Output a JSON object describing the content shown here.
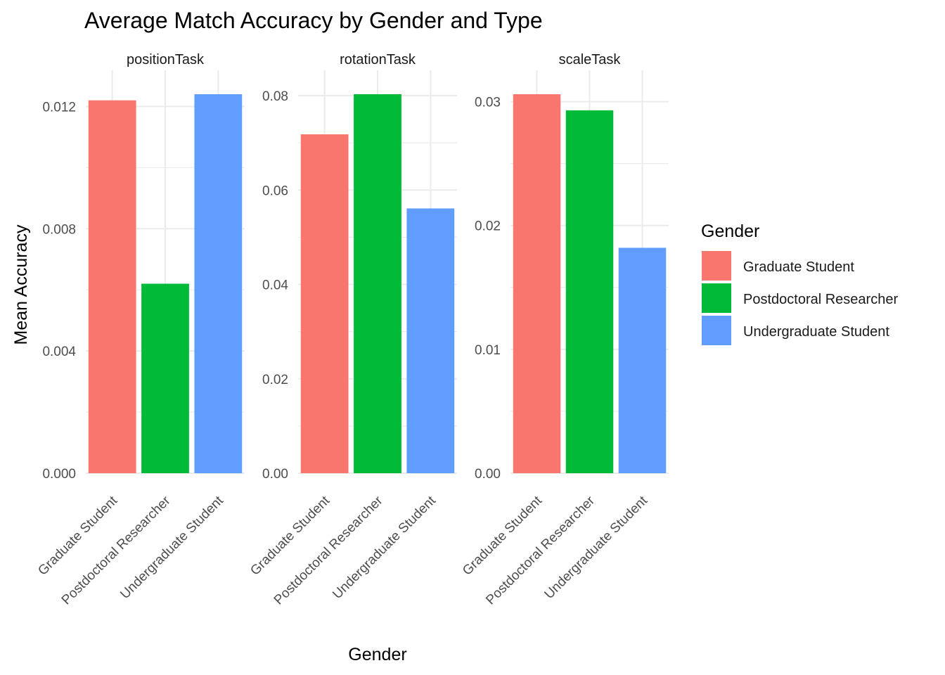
{
  "chart_data": {
    "type": "bar",
    "title": "Average Match Accuracy by Gender and Type",
    "xlabel": "Gender",
    "ylabel": "Mean Accuracy",
    "legend": {
      "title": "Gender",
      "position": "right",
      "entries": [
        {
          "label": "Graduate Student",
          "color": "#F8766D"
        },
        {
          "label": "Postdoctoral Researcher",
          "color": "#00BA38"
        },
        {
          "label": "Undergraduate Student",
          "color": "#619CFF"
        }
      ]
    },
    "categories": [
      "Graduate Student",
      "Postdoctoral Researcher",
      "Undergraduate Student"
    ],
    "grid": true,
    "facets": [
      {
        "name": "positionTask",
        "values": [
          0.0122,
          0.0062,
          0.0124
        ],
        "ylim": [
          0,
          0.0124
        ],
        "yticks": [
          0.0,
          0.004,
          0.008,
          0.012
        ],
        "ytick_labels": [
          "0.000",
          "0.004",
          "0.008",
          "0.012"
        ]
      },
      {
        "name": "rotationTask",
        "values": [
          0.0718,
          0.0803,
          0.0561
        ],
        "ylim": [
          0,
          0.0803
        ],
        "yticks": [
          0.0,
          0.02,
          0.04,
          0.06,
          0.08
        ],
        "ytick_labels": [
          "0.00",
          "0.02",
          "0.04",
          "0.06",
          "0.08"
        ]
      },
      {
        "name": "scaleTask",
        "values": [
          0.0306,
          0.0293,
          0.0182
        ],
        "ylim": [
          0,
          0.0306
        ],
        "yticks": [
          0.0,
          0.01,
          0.02,
          0.03
        ],
        "ytick_labels": [
          "0.00",
          "0.01",
          "0.02",
          "0.03"
        ]
      }
    ]
  }
}
